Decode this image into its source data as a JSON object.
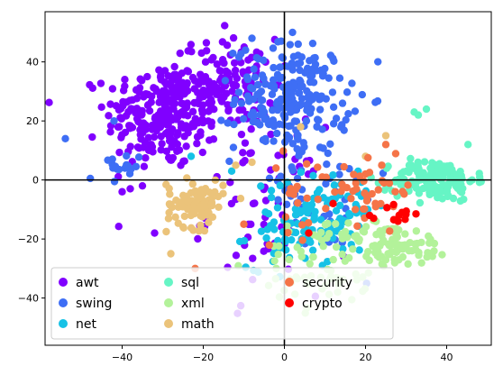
{
  "chart_data": {
    "type": "scatter",
    "title": "",
    "xlabel": "",
    "ylabel": "",
    "xlim": [
      -59,
      51
    ],
    "ylim": [
      -56,
      57
    ],
    "xticks": [
      -40,
      -20,
      0,
      20,
      40
    ],
    "yticks": [
      -40,
      -20,
      0,
      20,
      40
    ],
    "xtick_labels": [
      "−40",
      "−20",
      "0",
      "20",
      "40"
    ],
    "ytick_labels": [
      "−40",
      "−20",
      "0",
      "20",
      "40"
    ],
    "grid": false,
    "reference_lines": [
      {
        "axis": "x",
        "value": 0
      },
      {
        "axis": "y",
        "value": 0
      }
    ],
    "legend_location": "lower-left",
    "legend_columns": 3,
    "series": [
      {
        "name": "awt",
        "color": "#8000ff",
        "clusters": [
          {
            "cx": -30,
            "cy": 22,
            "sx": 7,
            "sy": 9,
            "n": 260
          },
          {
            "cx": -14,
            "cy": 32,
            "sx": 6,
            "sy": 8,
            "n": 130
          },
          {
            "cx": -5,
            "cy": -10,
            "sx": 7,
            "sy": 14,
            "n": 60
          }
        ],
        "points": [
          [
            -40,
            -4
          ],
          [
            -38,
            -3
          ],
          [
            -35,
            -2
          ],
          [
            -32,
            -18
          ],
          [
            -24,
            37
          ]
        ]
      },
      {
        "name": "swing",
        "color": "#3e6ef5",
        "clusters": [
          {
            "cx": 2,
            "cy": 28,
            "sx": 7,
            "sy": 9,
            "n": 220
          },
          {
            "cx": -42,
            "cy": 3,
            "sx": 3,
            "sy": 3,
            "n": 18
          },
          {
            "cx": 8,
            "cy": -5,
            "sx": 9,
            "sy": 10,
            "n": 50
          }
        ],
        "points": [
          [
            -54,
            14
          ],
          [
            2,
            50
          ],
          [
            -8,
            48
          ],
          [
            -42,
            20
          ]
        ]
      },
      {
        "name": "net",
        "color": "#16c2e6",
        "clusters": [
          {
            "cx": 3,
            "cy": -18,
            "sx": 6,
            "sy": 6,
            "n": 80
          },
          {
            "cx": 12,
            "cy": -8,
            "sx": 7,
            "sy": 6,
            "n": 50
          }
        ],
        "points": [
          [
            -13,
            3
          ],
          [
            -23,
            8
          ]
        ]
      },
      {
        "name": "sql",
        "color": "#66f5c5",
        "clusters": [
          {
            "cx": 37,
            "cy": 0,
            "sx": 5,
            "sy": 3.5,
            "n": 150
          }
        ],
        "points": [
          [
            32,
            23
          ],
          [
            33,
            22
          ],
          [
            35,
            24
          ]
        ]
      },
      {
        "name": "xml",
        "color": "#b3f29a",
        "clusters": [
          {
            "cx": 25,
            "cy": -22,
            "sx": 5,
            "sy": 4,
            "n": 60
          },
          {
            "cx": 10,
            "cy": -28,
            "sx": 8,
            "sy": 8,
            "n": 70
          },
          {
            "cx": 34,
            "cy": -22,
            "sx": 3,
            "sy": 3,
            "n": 25
          }
        ],
        "points": [
          [
            -2,
            -30
          ],
          [
            5,
            -33
          ]
        ]
      },
      {
        "name": "math",
        "color": "#ebc37a",
        "clusters": [
          {
            "cx": -22,
            "cy": -8,
            "sx": 3.5,
            "sy": 4,
            "n": 90
          }
        ],
        "points": [
          [
            -12,
            5
          ],
          [
            -8,
            6
          ],
          [
            25,
            15
          ],
          [
            20,
            8
          ],
          [
            -28,
            -25
          ],
          [
            4,
            18
          ]
        ]
      },
      {
        "name": "security",
        "color": "#f57448",
        "clusters": [
          {
            "cx": 22,
            "cy": -4,
            "sx": 5,
            "sy": 5,
            "n": 40
          },
          {
            "cx": 5,
            "cy": -5,
            "sx": 5,
            "sy": 7,
            "n": 20
          }
        ],
        "points": [
          [
            25,
            12
          ],
          [
            24,
            5
          ],
          [
            -22,
            -30
          ],
          [
            -10,
            -15
          ],
          [
            20,
            2
          ]
        ]
      },
      {
        "name": "crypto",
        "color": "#ff0000",
        "clusters": [
          {
            "cx": 27,
            "cy": -12,
            "sx": 3,
            "sy": 2,
            "n": 8
          }
        ],
        "points": [
          [
            12,
            -8
          ],
          [
            6,
            -18
          ],
          [
            29,
            -11
          ],
          [
            28,
            -14
          ],
          [
            22,
            -13
          ],
          [
            21,
            -12
          ]
        ]
      }
    ]
  }
}
